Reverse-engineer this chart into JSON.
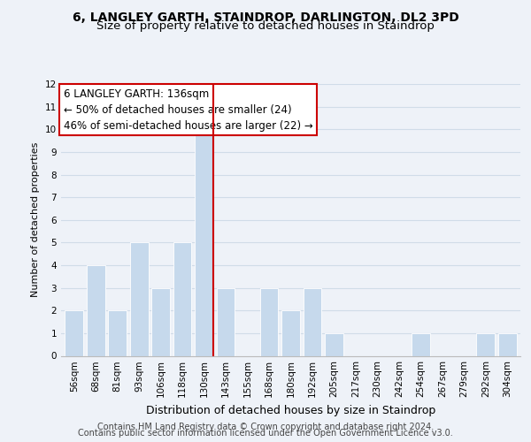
{
  "title": "6, LANGLEY GARTH, STAINDROP, DARLINGTON, DL2 3PD",
  "subtitle": "Size of property relative to detached houses in Staindrop",
  "xlabel": "Distribution of detached houses by size in Staindrop",
  "ylabel": "Number of detached properties",
  "categories": [
    "56sqm",
    "68sqm",
    "81sqm",
    "93sqm",
    "106sqm",
    "118sqm",
    "130sqm",
    "143sqm",
    "155sqm",
    "168sqm",
    "180sqm",
    "192sqm",
    "205sqm",
    "217sqm",
    "230sqm",
    "242sqm",
    "254sqm",
    "267sqm",
    "279sqm",
    "292sqm",
    "304sqm"
  ],
  "values": [
    2,
    4,
    2,
    5,
    3,
    5,
    10,
    3,
    0,
    3,
    2,
    3,
    1,
    0,
    0,
    0,
    1,
    0,
    0,
    1,
    1
  ],
  "bar_color": "#c6d9ec",
  "bar_edge_color": "#ffffff",
  "highlight_index": 6,
  "highlight_line_color": "#cc0000",
  "ylim": [
    0,
    12
  ],
  "yticks": [
    0,
    1,
    2,
    3,
    4,
    5,
    6,
    7,
    8,
    9,
    10,
    11,
    12
  ],
  "annotation_line1": "6 LANGLEY GARTH: 136sqm",
  "annotation_line2": "← 50% of detached houses are smaller (24)",
  "annotation_line3": "46% of semi-detached houses are larger (22) →",
  "annotation_box_edge_color": "#cc0000",
  "annotation_box_face_color": "#ffffff",
  "grid_color": "#d0dce8",
  "background_color": "#eef2f8",
  "footer_line1": "Contains HM Land Registry data © Crown copyright and database right 2024.",
  "footer_line2": "Contains public sector information licensed under the Open Government Licence v3.0.",
  "title_fontsize": 10,
  "subtitle_fontsize": 9.5,
  "xlabel_fontsize": 9,
  "ylabel_fontsize": 8,
  "tick_fontsize": 7.5,
  "annotation_fontsize": 8.5,
  "footer_fontsize": 7
}
